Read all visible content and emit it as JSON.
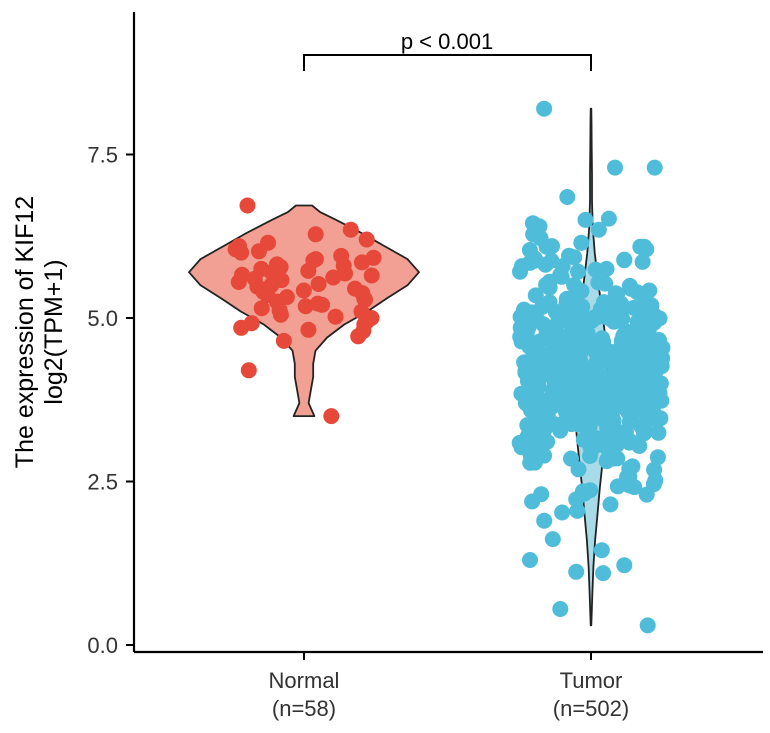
{
  "chart_data": {
    "type": "violin",
    "ylabel_line1": "The expression of KIF12",
    "ylabel_line2": "log2(TPM+1)",
    "xlabel": "",
    "ylim": [
      0,
      9.6
    ],
    "yticks": [
      "0.0",
      "2.5",
      "5.0",
      "7.5"
    ],
    "yticks_values": [
      0,
      2.5,
      5,
      7.5
    ],
    "grid": false,
    "legend": "none",
    "significance": "p < 0.001",
    "groups": [
      {
        "name": "Normal",
        "n_label": "(n=58)",
        "n": 58,
        "color": "#e6483a",
        "violin_fill": "#f2a094",
        "range": [
          3.5,
          6.72
        ],
        "density": [
          [
            3.5,
            0.09
          ],
          [
            3.7,
            0.04
          ],
          [
            3.9,
            0.06
          ],
          [
            4.1,
            0.08
          ],
          [
            4.3,
            0.08
          ],
          [
            4.5,
            0.1
          ],
          [
            4.7,
            0.2
          ],
          [
            4.9,
            0.35
          ],
          [
            5.1,
            0.55
          ],
          [
            5.3,
            0.72
          ],
          [
            5.5,
            0.9
          ],
          [
            5.7,
            1.0
          ],
          [
            5.9,
            0.9
          ],
          [
            6.1,
            0.7
          ],
          [
            6.3,
            0.5
          ],
          [
            6.5,
            0.28
          ],
          [
            6.62,
            0.14
          ],
          [
            6.72,
            0.07
          ]
        ],
        "points": [
          6.72,
          6.35,
          6.2,
          6.1,
          6.05,
          6.0,
          5.95,
          5.9,
          5.85,
          5.8,
          5.78,
          5.75,
          5.7,
          5.68,
          5.65,
          5.6,
          5.58,
          5.55,
          5.5,
          5.48,
          5.45,
          5.4,
          5.38,
          5.35,
          5.3,
          5.28,
          5.25,
          5.2,
          5.18,
          5.15,
          5.1,
          5.05,
          5.0,
          4.95,
          4.9,
          4.85,
          4.8,
          4.72,
          4.65,
          4.2,
          3.5,
          6.28,
          6.15,
          6.02,
          5.92,
          5.82,
          5.72,
          5.62,
          5.52,
          5.42,
          5.32,
          5.22,
          5.12,
          5.02,
          4.92,
          4.82,
          5.66,
          5.88
        ]
      },
      {
        "name": "Tumor",
        "n_label": "(n=502)",
        "n": 502,
        "color": "#4fbdd9",
        "violin_fill": "#a8dbe8",
        "range": [
          0.3,
          8.2
        ],
        "density": [
          [
            0.3,
            0.02
          ],
          [
            0.8,
            0.08
          ],
          [
            1.2,
            0.14
          ],
          [
            1.6,
            0.24
          ],
          [
            2.0,
            0.38
          ],
          [
            2.4,
            0.52
          ],
          [
            2.8,
            0.68
          ],
          [
            3.2,
            0.84
          ],
          [
            3.6,
            0.96
          ],
          [
            4.0,
            1.0
          ],
          [
            4.4,
            0.94
          ],
          [
            4.8,
            0.8
          ],
          [
            5.2,
            0.6
          ],
          [
            5.6,
            0.4
          ],
          [
            6.0,
            0.22
          ],
          [
            6.4,
            0.1
          ],
          [
            6.8,
            0.06
          ],
          [
            7.2,
            0.06
          ],
          [
            7.6,
            0.04
          ],
          [
            8.0,
            0.03
          ],
          [
            8.2,
            0.02
          ]
        ],
        "extreme_points": [
          8.2,
          7.3,
          7.3,
          6.85,
          6.52,
          6.5,
          6.45,
          6.4,
          6.35,
          6.28,
          6.22,
          6.15,
          6.1,
          1.62,
          1.45,
          1.3,
          1.22,
          1.1,
          1.12,
          0.55,
          0.3,
          1.9,
          2.05,
          2.15,
          2.3
        ]
      }
    ]
  }
}
